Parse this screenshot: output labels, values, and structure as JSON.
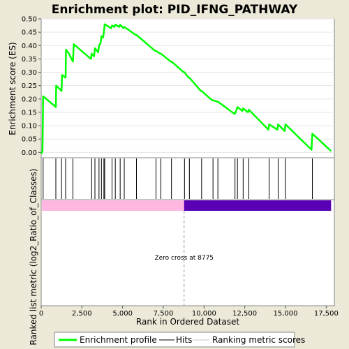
{
  "chart_data": {
    "type": "line",
    "title": "Enrichment plot: PID_IFNG_PATHWAY",
    "xlabel": "Rank in Ordered Dataset",
    "ylabel_top": "Enrichment score (ES)",
    "ylabel_bottom": "Ranked list metric (log2_Ratio_of_Classes)",
    "xlim": [
      0,
      18000
    ],
    "ylim": [
      -0.02,
      0.5
    ],
    "x_ticks": [
      "0",
      "2,500",
      "5,000",
      "7,500",
      "10,000",
      "12,500",
      "15,000",
      "17,500"
    ],
    "x_tick_values": [
      0,
      2500,
      5000,
      7500,
      10000,
      12500,
      15000,
      17500
    ],
    "y_ticks": [
      "0.00",
      "0.05",
      "0.10",
      "0.15",
      "0.20",
      "0.25",
      "0.30",
      "0.35",
      "0.40",
      "0.45",
      "0.50"
    ],
    "y_tick_values": [
      0,
      0.05,
      0.1,
      0.15,
      0.2,
      0.25,
      0.3,
      0.35,
      0.4,
      0.45,
      0.5
    ],
    "series": [
      {
        "name": "Enrichment profile",
        "color": "#00ff00",
        "x": [
          0,
          80,
          120,
          900,
          920,
          1250,
          1280,
          1500,
          1520,
          1700,
          1950,
          2000,
          3050,
          3100,
          3250,
          3300,
          3500,
          3550,
          3650,
          3700,
          3800,
          3850,
          3900,
          4300,
          4350,
          4500,
          4550,
          4800,
          4850,
          5050,
          5100,
          5800,
          5850,
          7000,
          7050,
          7300,
          7350,
          7950,
          8000,
          8750,
          8800,
          9050,
          9100,
          9800,
          9850,
          10500,
          10550,
          10800,
          10850,
          11850,
          11900,
          12000,
          12050,
          12350,
          12400,
          12700,
          12750,
          13950,
          14000,
          14500,
          14550,
          14950,
          15000,
          16600,
          16650,
          17800
        ],
        "y": [
          -0.005,
          0.005,
          0.21,
          0.17,
          0.25,
          0.23,
          0.29,
          0.28,
          0.385,
          0.37,
          0.34,
          0.405,
          0.35,
          0.37,
          0.36,
          0.39,
          0.375,
          0.4,
          0.41,
          0.435,
          0.43,
          0.45,
          0.48,
          0.465,
          0.475,
          0.47,
          0.478,
          0.47,
          0.478,
          0.465,
          0.47,
          0.44,
          0.44,
          0.38,
          0.38,
          0.37,
          0.37,
          0.34,
          0.34,
          0.3,
          0.3,
          0.28,
          0.28,
          0.23,
          0.23,
          0.195,
          0.195,
          0.19,
          0.19,
          0.145,
          0.145,
          0.16,
          0.17,
          0.155,
          0.165,
          0.15,
          0.16,
          0.085,
          0.105,
          0.085,
          0.105,
          0.08,
          0.105,
          0.01,
          0.07,
          0.005
        ]
      }
    ],
    "hits": [
      120,
      900,
      1250,
      1500,
      1950,
      3100,
      3300,
      3550,
      3700,
      3850,
      3900,
      4350,
      4550,
      4850,
      5100,
      5850,
      7050,
      7350,
      8000,
      8800,
      9100,
      9850,
      10550,
      10850,
      11900,
      12050,
      12400,
      12750,
      14000,
      14550,
      15000,
      16650
    ],
    "zero_cross_label": "Zero cross at 8775",
    "zero_cross": 8775,
    "metric_bar": {
      "positive_color": "#ffb6e1",
      "negative_color": "#5a00b4",
      "end": 17800
    },
    "legend": {
      "position": "bottom",
      "items": [
        {
          "label": "Enrichment profile",
          "color": "#00ff00"
        },
        {
          "label": "Hits",
          "color": "#000000"
        },
        {
          "label": "Ranking metric scores",
          "color": "#c8c8c8"
        }
      ]
    }
  }
}
